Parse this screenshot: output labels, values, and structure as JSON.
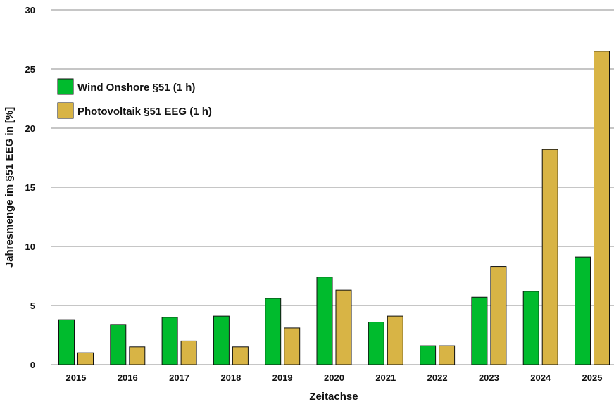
{
  "chart_data": {
    "type": "bar",
    "title": "",
    "xlabel": "Zeitachse",
    "ylabel": "Jahresmenge im §51 EEG in [%]",
    "ylim": [
      0,
      30
    ],
    "yticks": [
      0,
      5,
      10,
      15,
      20,
      25,
      30
    ],
    "grid": true,
    "legend_position": "top-left",
    "categories": [
      "2015",
      "2016",
      "2017",
      "2018",
      "2019",
      "2020",
      "2021",
      "2022",
      "2023",
      "2024",
      "2025"
    ],
    "series": [
      {
        "name": "Wind Onshore §51 (1 h)",
        "color": "#00bb2d",
        "values": [
          3.8,
          3.4,
          4.0,
          4.1,
          5.6,
          7.4,
          3.6,
          1.6,
          5.7,
          6.2,
          9.1
        ]
      },
      {
        "name": "Photovoltaik §51 EEG (1 h)",
        "color": "#d8b445",
        "values": [
          1.0,
          1.5,
          2.0,
          1.5,
          3.1,
          6.3,
          4.1,
          1.6,
          8.3,
          18.2,
          26.5
        ]
      }
    ]
  }
}
